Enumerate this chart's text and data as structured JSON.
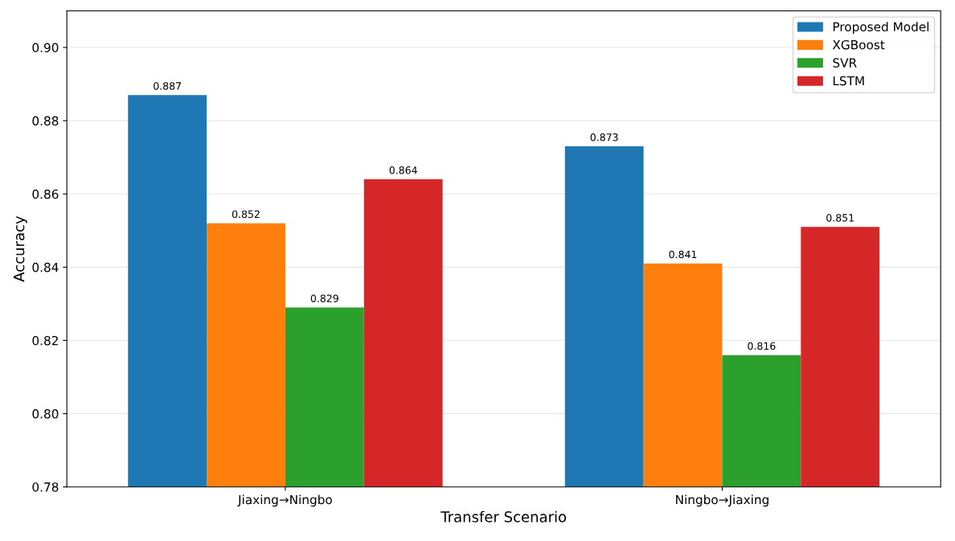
{
  "chart_data": {
    "type": "bar",
    "xlabel": "Transfer Scenario",
    "ylabel": "Accuracy",
    "categories": [
      "Jiaxing→Ningbo",
      "Ningbo→Jiaxing"
    ],
    "series": [
      {
        "name": "Proposed Model",
        "color": "#1f77b4",
        "values": [
          0.887,
          0.873
        ]
      },
      {
        "name": "XGBoost",
        "color": "#ff7f0e",
        "values": [
          0.852,
          0.841
        ]
      },
      {
        "name": "SVR",
        "color": "#2ca02c",
        "values": [
          0.829,
          0.816
        ]
      },
      {
        "name": "LSTM",
        "color": "#d62728",
        "values": [
          0.864,
          0.851
        ]
      }
    ],
    "ylim": [
      0.78,
      0.91
    ],
    "yticks": [
      {
        "value": 0.78,
        "label": "0.78"
      },
      {
        "value": 0.8,
        "label": "0.80"
      },
      {
        "value": 0.82,
        "label": "0.82"
      },
      {
        "value": 0.84,
        "label": "0.84"
      },
      {
        "value": 0.86,
        "label": "0.86"
      },
      {
        "value": 0.88,
        "label": "0.88"
      },
      {
        "value": 0.9,
        "label": "0.90"
      }
    ],
    "grid": "y",
    "legend": "top right",
    "data_labels": true
  }
}
